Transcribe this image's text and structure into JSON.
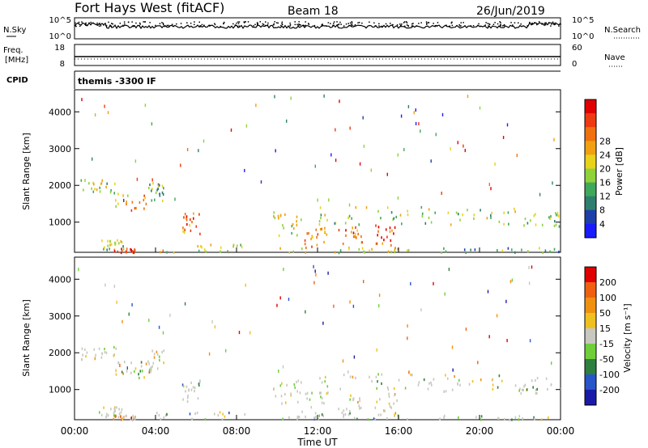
{
  "header": {
    "station": "Fort Hays West (fitACF)",
    "beam": "Beam 18",
    "date": "26/Jun/2019"
  },
  "top_panels": {
    "nsky_label": "N.Sky",
    "nsky_ticks": [
      "10^5",
      "10^0"
    ],
    "nsearch_label": "N.Search",
    "nsearch_ticks": [
      "10^5",
      "10^0"
    ],
    "freq_label": "Freq.",
    "freq_unit": "[MHz]",
    "freq_ticks": [
      "18",
      "8"
    ],
    "nave_label": "Nave",
    "nave_ticks": [
      "60",
      "0"
    ],
    "cpid_label": "CPID",
    "cpid_value": "themis -3300 IF"
  },
  "chart_data": [
    {
      "type": "heatmap",
      "name": "power",
      "ylabel": "Slant Range [km]",
      "xlabel": "",
      "ylim": [
        180,
        4600
      ],
      "y_ticks": [
        1000,
        2000,
        3000,
        4000
      ],
      "x_ticks": [
        "00:00",
        "04:00",
        "08:00",
        "12:00",
        "16:00",
        "20:00",
        "00:00"
      ],
      "xlim_hours": [
        0,
        24
      ],
      "colorbar": {
        "label": "Power [dB]",
        "ticks": [
          "4",
          "8",
          "12",
          "16",
          "20",
          "24",
          "28"
        ],
        "colors": [
          "#1a1aff",
          "#1f3fa8",
          "#2f7f6f",
          "#3fa85a",
          "#8fd23a",
          "#e8d21a",
          "#f0a010",
          "#f07010",
          "#ee3a10",
          "#e00000"
        ]
      },
      "regions": [
        {
          "t": [
            0.3,
            2.1
          ],
          "r": [
            1800,
            2200
          ],
          "level": 4
        },
        {
          "t": [
            2.0,
            3.6
          ],
          "r": [
            1350,
            1800
          ],
          "level": 6
        },
        {
          "t": [
            3.6,
            4.4
          ],
          "r": [
            1500,
            2100
          ],
          "level": 3
        },
        {
          "t": [
            5.3,
            6.2
          ],
          "r": [
            700,
            1300
          ],
          "level": 7
        },
        {
          "t": [
            1.2,
            2.4
          ],
          "r": [
            280,
            550
          ],
          "level": 4
        },
        {
          "t": [
            1.8,
            3.0
          ],
          "r": [
            200,
            330
          ],
          "level": 8
        },
        {
          "t": [
            4.0,
            8.4
          ],
          "r": [
            200,
            420
          ],
          "level": 5
        },
        {
          "t": [
            9.8,
            11.2
          ],
          "r": [
            650,
            1300
          ],
          "level": 5
        },
        {
          "t": [
            11.2,
            12.5
          ],
          "r": [
            300,
            1000
          ],
          "level": 7
        },
        {
          "t": [
            13.0,
            14.2
          ],
          "r": [
            300,
            900
          ],
          "level": 7
        },
        {
          "t": [
            14.8,
            16.0
          ],
          "r": [
            250,
            950
          ],
          "level": 8
        },
        {
          "t": [
            10.0,
            16.5
          ],
          "r": [
            200,
            330
          ],
          "level": 5
        },
        {
          "t": [
            12.0,
            22.0
          ],
          "r": [
            950,
            1450
          ],
          "level": 4
        },
        {
          "t": [
            18.0,
            24.0
          ],
          "r": [
            200,
            330
          ],
          "level": 3
        },
        {
          "t": [
            22.0,
            24.0
          ],
          "r": [
            900,
            1350
          ],
          "level": 4
        }
      ]
    },
    {
      "type": "heatmap",
      "name": "velocity",
      "ylabel": "Slant Range [km]",
      "xlabel": "Time UT",
      "ylim": [
        180,
        4600
      ],
      "y_ticks": [
        1000,
        2000,
        3000,
        4000
      ],
      "x_ticks": [
        "00:00",
        "04:00",
        "08:00",
        "12:00",
        "16:00",
        "20:00",
        "00:00"
      ],
      "xlim_hours": [
        0,
        24
      ],
      "colorbar": {
        "label": "Velocity [m s⁻¹]",
        "ticks": [
          "200",
          "100",
          "50",
          "15",
          "-15",
          "-50",
          "-100",
          "-200"
        ],
        "colors": [
          "#1a1aa8",
          "#2a55c8",
          "#2f7f3f",
          "#6fcf3a",
          "#c8c8c0",
          "#f0c020",
          "#f09010",
          "#f06010",
          "#e00000"
        ]
      },
      "regions": [
        {
          "t": [
            0.3,
            2.1
          ],
          "r": [
            1800,
            2200
          ],
          "level": 4
        },
        {
          "t": [
            2.0,
            3.6
          ],
          "r": [
            1350,
            1800
          ],
          "level": 4
        },
        {
          "t": [
            3.6,
            4.4
          ],
          "r": [
            1500,
            2100
          ],
          "level": 5
        },
        {
          "t": [
            5.3,
            6.2
          ],
          "r": [
            700,
            1300
          ],
          "level": 3
        },
        {
          "t": [
            1.2,
            2.4
          ],
          "r": [
            280,
            550
          ],
          "level": 4
        },
        {
          "t": [
            1.8,
            3.0
          ],
          "r": [
            200,
            330
          ],
          "level": 6
        },
        {
          "t": [
            4.0,
            8.4
          ],
          "r": [
            200,
            420
          ],
          "level": 3
        },
        {
          "t": [
            9.8,
            11.2
          ],
          "r": [
            650,
            1300
          ],
          "level": 4
        },
        {
          "t": [
            11.2,
            12.5
          ],
          "r": [
            300,
            1000
          ],
          "level": 4
        },
        {
          "t": [
            13.0,
            14.2
          ],
          "r": [
            300,
            900
          ],
          "level": 4
        },
        {
          "t": [
            14.8,
            16.0
          ],
          "r": [
            250,
            950
          ],
          "level": 5
        },
        {
          "t": [
            10.0,
            16.5
          ],
          "r": [
            200,
            330
          ],
          "level": 3
        },
        {
          "t": [
            12.0,
            22.0
          ],
          "r": [
            950,
            1450
          ],
          "level": 4
        },
        {
          "t": [
            18.0,
            24.0
          ],
          "r": [
            200,
            330
          ],
          "level": 3
        },
        {
          "t": [
            22.0,
            24.0
          ],
          "r": [
            900,
            1350
          ],
          "level": 4
        }
      ]
    }
  ]
}
